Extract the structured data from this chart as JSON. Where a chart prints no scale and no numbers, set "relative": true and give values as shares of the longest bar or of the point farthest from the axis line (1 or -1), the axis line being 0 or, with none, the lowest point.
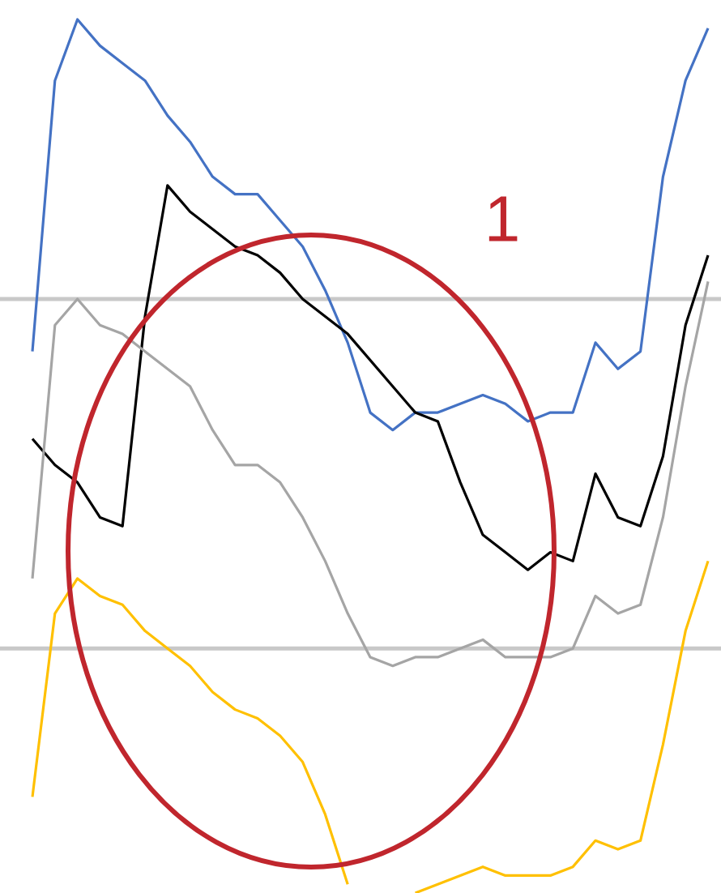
{
  "chart_data": {
    "type": "line",
    "relative": true,
    "marker": "none",
    "line_style": "solid",
    "categories": [
      null,
      null,
      null,
      null,
      null,
      null,
      null,
      null,
      null,
      null,
      null,
      null,
      null,
      null,
      null,
      null,
      null,
      null,
      null,
      null,
      null,
      null,
      null,
      null,
      null,
      null,
      null,
      null,
      null,
      null,
      null
    ],
    "series": [
      {
        "color": "#4472c4",
        "values": [
          0.62,
          0.93,
          1.0,
          0.97,
          0.95,
          0.93,
          0.89,
          0.86,
          0.82,
          0.8,
          0.8,
          0.77,
          0.74,
          0.69,
          0.63,
          0.55,
          0.53,
          0.55,
          0.55,
          0.56,
          0.57,
          0.56,
          0.54,
          0.55,
          0.55,
          0.63,
          0.6,
          0.62,
          0.82,
          0.93,
          0.99
        ]
      },
      {
        "color": "#000000",
        "values": [
          0.52,
          0.49,
          0.47,
          0.43,
          0.42,
          0.66,
          0.81,
          0.78,
          0.76,
          0.74,
          0.73,
          0.71,
          0.68,
          0.66,
          0.64,
          0.61,
          0.58,
          0.55,
          0.54,
          0.47,
          0.41,
          0.39,
          0.37,
          0.39,
          0.38,
          0.48,
          0.43,
          0.42,
          0.5,
          0.65,
          0.73
        ]
      },
      {
        "color": "#a5a5a5",
        "values": [
          0.36,
          0.65,
          0.68,
          0.65,
          0.64,
          0.62,
          0.6,
          0.58,
          0.53,
          0.49,
          0.49,
          0.47,
          0.43,
          0.38,
          0.32,
          0.27,
          0.26,
          0.27,
          0.27,
          0.28,
          0.29,
          0.27,
          0.27,
          0.27,
          0.28,
          0.34,
          0.32,
          0.33,
          0.43,
          0.58,
          0.7
        ]
      },
      {
        "color": "#ffc000",
        "values": [
          0.11,
          0.32,
          0.36,
          0.34,
          0.33,
          0.3,
          0.28,
          0.26,
          0.23,
          0.21,
          0.2,
          0.18,
          0.15,
          0.09,
          0.01,
          null,
          null,
          0.0,
          0.01,
          0.02,
          0.03,
          0.02,
          0.02,
          0.02,
          0.03,
          0.06,
          0.05,
          0.06,
          0.17,
          0.3,
          0.38
        ]
      }
    ],
    "ref_lines": [
      {
        "axis": "y",
        "value": 0.68,
        "color": "#c8c8c8"
      },
      {
        "axis": "y",
        "value": 0.28,
        "color": "#c8c8c8"
      }
    ],
    "annotations": [
      "1"
    ]
  }
}
